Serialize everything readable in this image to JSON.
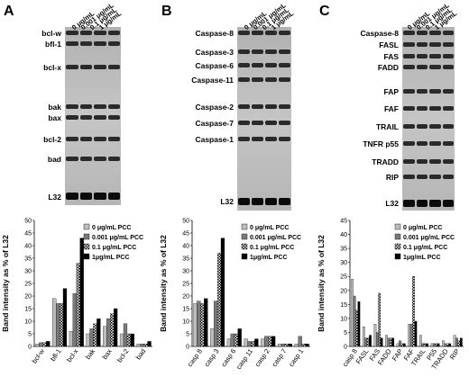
{
  "panels": [
    {
      "letter": "A",
      "lanes": [
        "0 μg/mL",
        "0.001 μg/mL",
        "0.1 μg/mL",
        "1 μg/mL"
      ],
      "band_labels": [
        "bcl-w",
        "bfl-1",
        "bcl-x",
        "bak",
        "bax",
        "bcl-2",
        "bad",
        "L32"
      ],
      "chart_data": {
        "type": "bar",
        "ylabel": "Band intensity as % of L32",
        "ylim": [
          0,
          50
        ],
        "yticks": [
          0,
          5,
          10,
          15,
          20,
          25,
          30,
          35,
          40,
          45,
          50
        ],
        "categories": [
          "bcl-w",
          "bfl-1",
          "bcl-x",
          "bak",
          "bax",
          "bcl-2",
          "bad"
        ],
        "legend": [
          "0 μg/mL PCC",
          "0.001 μg/mL PCC",
          "0.1 μg/mL PCC",
          "1μg/mL PCC"
        ],
        "series": [
          {
            "name": "0 μg/mL PCC",
            "values": [
              1,
              19,
              6,
              5,
              8,
              5,
              1
            ]
          },
          {
            "name": "0.001 μg/mL PCC",
            "values": [
              1.5,
              17,
              21,
              7,
              11,
              9,
              1
            ]
          },
          {
            "name": "0.1 μg/mL PCC",
            "values": [
              1.5,
              17,
              33,
              9,
              13,
              5,
              1
            ]
          },
          {
            "name": "1μg/mL PCC",
            "values": [
              2,
              23,
              43,
              11,
              15,
              5,
              2
            ]
          }
        ]
      }
    },
    {
      "letter": "B",
      "lanes": [
        "0 μg/mL",
        "0.001 μg/mL",
        "0.1 μg/mL",
        "1 μg/mL"
      ],
      "band_labels": [
        "Caspase-8",
        "Caspase-3",
        "Caspase-6",
        "Caspase-11",
        "Caspase-2",
        "Caspase-7",
        "Caspase-1",
        "L32"
      ],
      "chart_data": {
        "type": "bar",
        "ylabel": "Band intensity as % of L32",
        "ylim": [
          0,
          50
        ],
        "yticks": [
          0,
          5,
          10,
          15,
          20,
          25,
          30,
          35,
          40,
          45,
          50
        ],
        "categories": [
          "casp 8",
          "casp 3",
          "casp 6",
          "casp 11",
          "casp 2",
          "casp 7",
          "casp 1"
        ],
        "legend": [
          "0 μg/mL PCC",
          "0.001 μg/mL PCC",
          "0.1 μg/mL PCC",
          "1μg/mL PCC"
        ],
        "series": [
          {
            "name": "0 μg/mL PCC",
            "values": [
              17,
              7,
              3,
              3,
              3,
              1,
              1
            ]
          },
          {
            "name": "0.001 μg/mL PCC",
            "values": [
              18,
              18,
              5,
              2,
              4,
              1,
              4
            ]
          },
          {
            "name": "0.1 μg/mL PCC",
            "values": [
              17,
              37,
              5,
              2,
              4,
              1,
              1
            ]
          },
          {
            "name": "1μg/mL PCC",
            "values": [
              19,
              43,
              7,
              3,
              4,
              1,
              1
            ]
          }
        ]
      }
    },
    {
      "letter": "C",
      "lanes": [
        "0 μg/mL",
        "0.001 μg/mL",
        "0.1 μg/mL",
        "1 μg/mL"
      ],
      "band_labels": [
        "Caspase-8",
        "FASL",
        "FAS",
        "FADD",
        "FAP",
        "FAF",
        "TRAIL",
        "TNFR p55",
        "TRADD",
        "RIP",
        "L32"
      ],
      "chart_data": {
        "type": "bar",
        "ylabel": "Band intensity as % of L32",
        "ylim": [
          0,
          45
        ],
        "yticks": [
          0,
          5,
          10,
          15,
          20,
          25,
          30,
          35,
          40,
          45
        ],
        "categories": [
          "casp 8",
          "FASL",
          "FAS",
          "FADD",
          "FAP",
          "FAF",
          "TRAIL",
          "P55",
          "TRADD",
          "RIP"
        ],
        "legend": [
          "0 μg/mL PCC",
          "0.001 μg/mL PCC",
          "0.1 μg/mL PCC",
          "1μg/mL PCC"
        ],
        "series": [
          {
            "name": "0 μg/mL PCC",
            "values": [
              24,
              7,
              8,
              4,
              1,
              8,
              4,
              1,
              2,
              4
            ]
          },
          {
            "name": "0.001 μg/mL PCC",
            "values": [
              18,
              3,
              5,
              3,
              2,
              8,
              1,
              1,
              1,
              3
            ]
          },
          {
            "name": "0.1 μg/mL PCC",
            "values": [
              13,
              3,
              19,
              3,
              1,
              25,
              1,
              1,
              1,
              2
            ]
          },
          {
            "name": "1μg/mL PCC",
            "values": [
              16,
              4,
              3,
              3,
              1,
              9,
              1,
              1,
              1,
              3
            ]
          }
        ]
      }
    }
  ],
  "series_colors": [
    "#bdbdbd",
    "#7a7a7a",
    "#ffffff",
    "#000000"
  ]
}
